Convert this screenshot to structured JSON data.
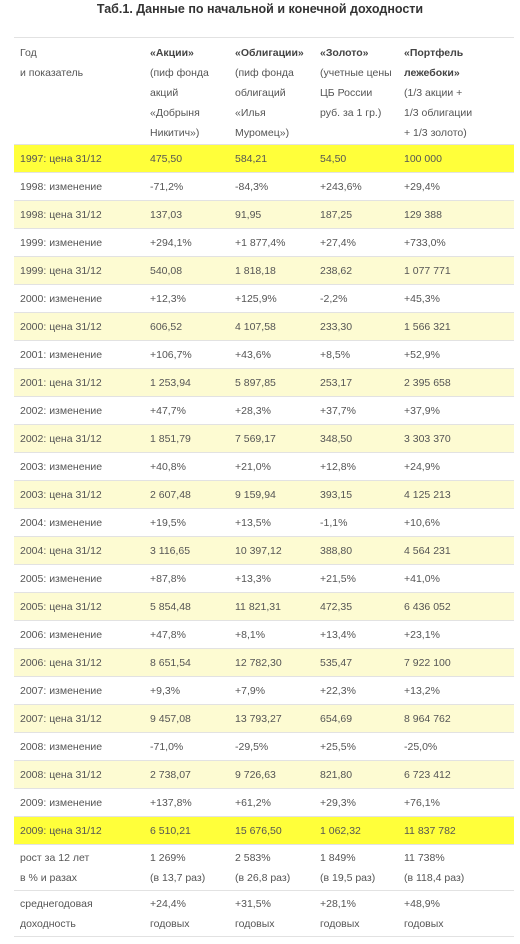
{
  "header": {
    "title": "Таб.1. Данные по начальной и конечной доходности"
  },
  "table": {
    "header": [
      {
        "lines": [
          "Год",
          "и показатель"
        ]
      },
      {
        "title": [
          "«Акции»"
        ],
        "lines": [
          "(пиф фонда",
          "акций",
          "«Добрыня",
          "Никитич»)"
        ]
      },
      {
        "title": [
          "«Облигации»"
        ],
        "lines": [
          "(пиф фонда",
          "облигаций",
          "«Илья",
          "Муромец»)"
        ]
      },
      {
        "title": [
          "«Золото»"
        ],
        "lines": [
          "(учетные цены",
          "ЦБ России",
          "руб. за 1 гр.)"
        ]
      },
      {
        "title": [
          "«Портфель",
          "лежебоки»"
        ],
        "lines": [
          "(1/3 акции +",
          "1/3 облигации",
          "+ 1/3 золото)"
        ]
      }
    ],
    "rows": [
      [
        "1997: цена 31/12",
        "475,50",
        "584,21",
        "54,50",
        "100 000"
      ],
      [
        "1998: изменение",
        "-71,2%",
        "-84,3%",
        "+243,6%",
        "+29,4%"
      ],
      [
        "1998: цена 31/12",
        "137,03",
        "91,95",
        "187,25",
        "129 388"
      ],
      [
        "1999: изменение",
        "+294,1%",
        "+1 877,4%",
        "+27,4%",
        "+733,0%"
      ],
      [
        "1999: цена 31/12",
        "540,08",
        "1 818,18",
        "238,62",
        "1 077 771"
      ],
      [
        "2000: изменение",
        "+12,3%",
        "+125,9%",
        "-2,2%",
        "+45,3%"
      ],
      [
        "2000: цена 31/12",
        "606,52",
        "4 107,58",
        "233,30",
        "1 566 321"
      ],
      [
        "2001: изменение",
        "+106,7%",
        "+43,6%",
        "+8,5%",
        "+52,9%"
      ],
      [
        "2001: цена 31/12",
        "1 253,94",
        "5 897,85",
        "253,17",
        "2 395 658"
      ],
      [
        "2002: изменение",
        "+47,7%",
        "+28,3%",
        "+37,7%",
        "+37,9%"
      ],
      [
        "2002: цена 31/12",
        "1 851,79",
        "7 569,17",
        "348,50",
        "3 303 370"
      ],
      [
        "2003: изменение",
        "+40,8%",
        "+21,0%",
        "+12,8%",
        "+24,9%"
      ],
      [
        "2003: цена 31/12",
        "2 607,48",
        "9 159,94",
        "393,15",
        "4 125 213"
      ],
      [
        "2004: изменение",
        "+19,5%",
        "+13,5%",
        "-1,1%",
        "+10,6%"
      ],
      [
        "2004: цена 31/12",
        "3 116,65",
        "10 397,12",
        "388,80",
        "4 564 231"
      ],
      [
        "2005: изменение",
        "+87,8%",
        "+13,3%",
        "+21,5%",
        "+41,0%"
      ],
      [
        "2005: цена 31/12",
        "5 854,48",
        "11 821,31",
        "472,35",
        "6 436 052"
      ],
      [
        "2006: изменение",
        "+47,8%",
        "+8,1%",
        "+13,4%",
        "+23,1%"
      ],
      [
        "2006: цена 31/12",
        "8 651,54",
        "12 782,30",
        "535,47",
        "7 922 100"
      ],
      [
        "2007: изменение",
        "+9,3%",
        "+7,9%",
        "+22,3%",
        "+13,2%"
      ],
      [
        "2007: цена 31/12",
        "9 457,08",
        "13 793,27",
        "654,69",
        "8 964 762"
      ],
      [
        "2008: изменение",
        "-71,0%",
        "-29,5%",
        "+25,5%",
        "-25,0%"
      ],
      [
        "2008: цена 31/12",
        "2 738,07",
        "9 726,63",
        "821,80",
        "6 723 412"
      ],
      [
        "2009: изменение",
        "+137,8%",
        "+61,2%",
        "+29,3%",
        "+76,1%"
      ],
      [
        "2009: цена 31/12",
        "6 510,21",
        "15 676,50",
        "1 062,32",
        "11 837 782"
      ]
    ],
    "footer": [
      [
        [
          "рост за 12 лет",
          "в % и разах"
        ],
        [
          "1 269%",
          "(в 13,7 раз)"
        ],
        [
          "2 583%",
          "(в 26,8 раз)"
        ],
        [
          "1 849%",
          "(в 19,5 раз)"
        ],
        [
          "11 738%",
          "(в 118,4 раз)"
        ]
      ],
      [
        [
          "среднегодовая",
          "доходность"
        ],
        [
          "+24,4%",
          "годовых"
        ],
        [
          "+31,5%",
          "годовых"
        ],
        [
          "+28,1%",
          "годовых"
        ],
        [
          "+48,9%",
          "годовых"
        ]
      ]
    ]
  }
}
